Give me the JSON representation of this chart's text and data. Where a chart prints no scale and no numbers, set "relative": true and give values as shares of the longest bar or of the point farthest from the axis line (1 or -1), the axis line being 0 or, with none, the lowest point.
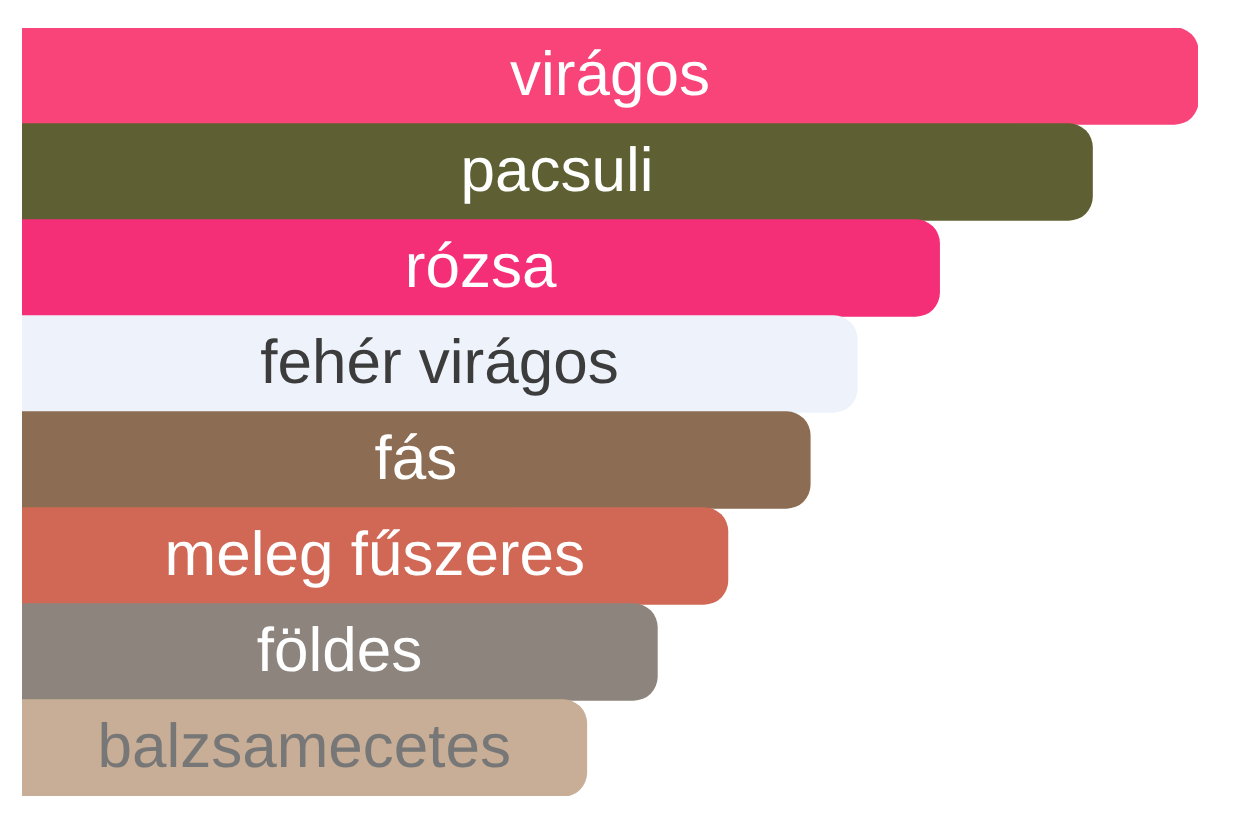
{
  "chart_data": {
    "type": "bar",
    "orientation": "horizontal",
    "relative": true,
    "categories": [
      "virágos",
      "pacsuli",
      "rózsa",
      "fehér virágos",
      "fás",
      "meleg fűszeres",
      "földes",
      "balzsamecetes"
    ],
    "values": [
      1,
      0.91,
      0.78,
      0.71,
      0.67,
      0.6,
      0.54,
      0.48
    ],
    "colors": [
      "#f94479",
      "#5e6033",
      "#f52e78",
      "#edf2fb",
      "#8c6c52",
      "#d16855",
      "#8c847d",
      "#c8ae96"
    ]
  }
}
